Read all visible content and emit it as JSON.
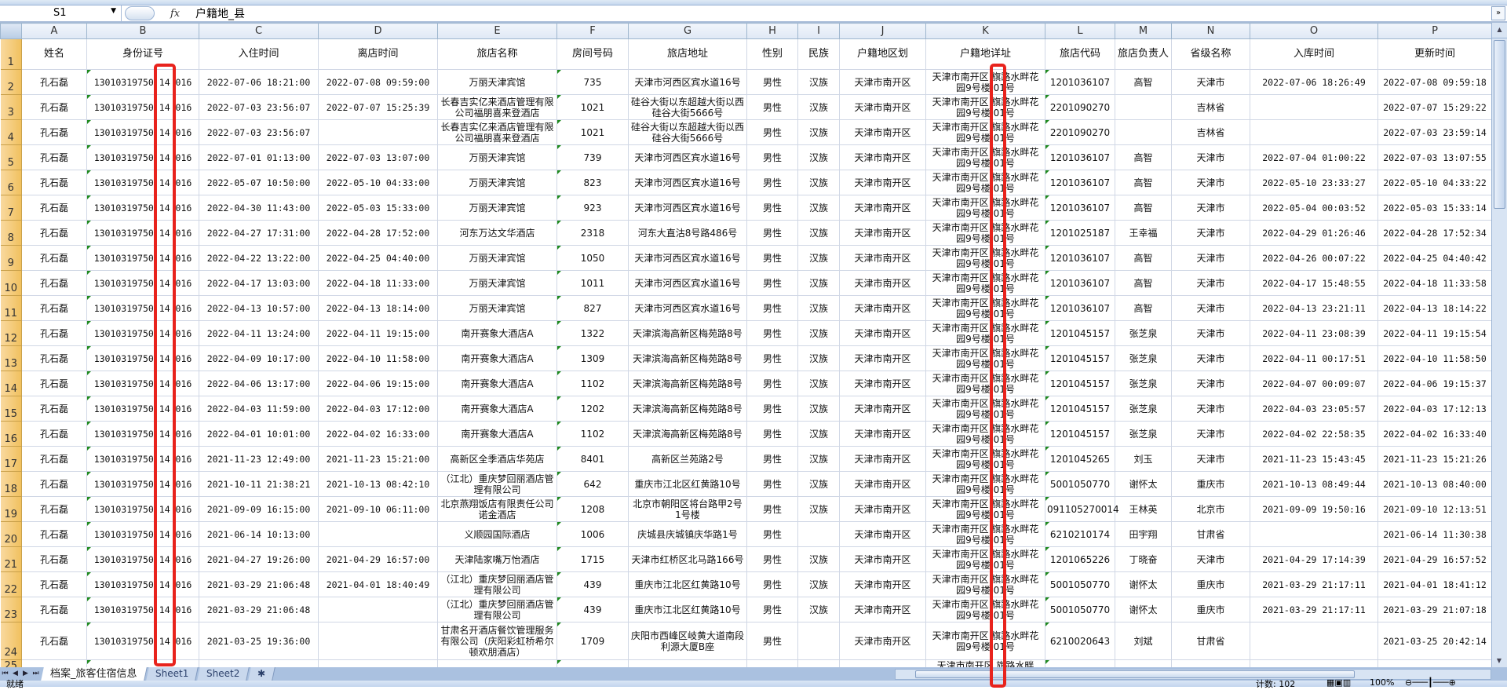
{
  "formula_bar": {
    "name_box": "S1",
    "fx_label": "fx",
    "content": "户籍地_县"
  },
  "columns": [
    "A",
    "B",
    "C",
    "D",
    "E",
    "F",
    "G",
    "H",
    "I",
    "J",
    "K",
    "L",
    "M",
    "N",
    "O",
    "P"
  ],
  "headers": [
    "姓名",
    "身份证号",
    "入住时间",
    "离店时间",
    "旅店名称",
    "房间号码",
    "旅店地址",
    "性别",
    "民族",
    "户籍地区划",
    "户籍地详址",
    "旅店代码",
    "旅店负责人",
    "省级名称",
    "入库时间",
    "更新时间"
  ],
  "rows": [
    [
      "孔石磊",
      "13010319750 14 016",
      "2022-07-06 18:21:00",
      "2022-07-08 09:59:00",
      "万丽天津宾馆",
      "735",
      "天津市河西区宾水道16号",
      "男性",
      "汉族",
      "天津市南开区",
      "天津市南开区 旗路水畔花园9号楼 01号",
      "1201036107",
      "高智",
      "天津市",
      "2022-07-06 18:26:49",
      "2022-07-08 09:59:18"
    ],
    [
      "孔石磊",
      "13010319750 14 016",
      "2022-07-03 23:56:07",
      "2022-07-07 15:25:39",
      "长春吉实亿来酒店管理有限公司福朋喜来登酒店",
      "1021",
      "硅谷大街以东超越大街以西硅谷大街5666号",
      "男性",
      "汉族",
      "天津市南开区",
      "天津市南开区 旗路水畔花园9号楼 01号",
      "2201090270",
      "",
      "吉林省",
      "",
      "2022-07-07 15:29:22"
    ],
    [
      "孔石磊",
      "13010319750 14 016",
      "2022-07-03 23:56:07",
      "",
      "长春吉实亿来酒店管理有限公司福朋喜来登酒店",
      "1021",
      "硅谷大街以东超越大街以西硅谷大街5666号",
      "男性",
      "汉族",
      "天津市南开区",
      "天津市南开区 旗路水畔花园9号楼 01号",
      "2201090270",
      "",
      "吉林省",
      "",
      "2022-07-03 23:59:14"
    ],
    [
      "孔石磊",
      "13010319750 14 016",
      "2022-07-01 01:13:00",
      "2022-07-03 13:07:00",
      "万丽天津宾馆",
      "739",
      "天津市河西区宾水道16号",
      "男性",
      "汉族",
      "天津市南开区",
      "天津市南开区 旗路水畔花园9号楼 01号",
      "1201036107",
      "高智",
      "天津市",
      "2022-07-04 01:00:22",
      "2022-07-03 13:07:55"
    ],
    [
      "孔石磊",
      "13010319750 14 016",
      "2022-05-07 10:50:00",
      "2022-05-10 04:33:00",
      "万丽天津宾馆",
      "823",
      "天津市河西区宾水道16号",
      "男性",
      "汉族",
      "天津市南开区",
      "天津市南开区 旗路水畔花园9号楼 01号",
      "1201036107",
      "高智",
      "天津市",
      "2022-05-10 23:33:27",
      "2022-05-10 04:33:22"
    ],
    [
      "孔石磊",
      "13010319750 14 016",
      "2022-04-30 11:43:00",
      "2022-05-03 15:33:00",
      "万丽天津宾馆",
      "923",
      "天津市河西区宾水道16号",
      "男性",
      "汉族",
      "天津市南开区",
      "天津市南开区 旗路水畔花园9号楼 01号",
      "1201036107",
      "高智",
      "天津市",
      "2022-05-04 00:03:52",
      "2022-05-03 15:33:14"
    ],
    [
      "孔石磊",
      "13010319750 14 016",
      "2022-04-27 17:31:00",
      "2022-04-28 17:52:00",
      "河东万达文华酒店",
      "2318",
      "河东大直沽8号路486号",
      "男性",
      "汉族",
      "天津市南开区",
      "天津市南开区 旗路水畔花园9号楼 01号",
      "1201025187",
      "王幸福",
      "天津市",
      "2022-04-29 01:26:46",
      "2022-04-28 17:52:34"
    ],
    [
      "孔石磊",
      "13010319750 14 016",
      "2022-04-22 13:22:00",
      "2022-04-25 04:40:00",
      "万丽天津宾馆",
      "1050",
      "天津市河西区宾水道16号",
      "男性",
      "汉族",
      "天津市南开区",
      "天津市南开区 旗路水畔花园9号楼 01号",
      "1201036107",
      "高智",
      "天津市",
      "2022-04-26 00:07:22",
      "2022-04-25 04:40:42"
    ],
    [
      "孔石磊",
      "13010319750 14 016",
      "2022-04-17 13:03:00",
      "2022-04-18 11:33:00",
      "万丽天津宾馆",
      "1011",
      "天津市河西区宾水道16号",
      "男性",
      "汉族",
      "天津市南开区",
      "天津市南开区 旗路水畔花园9号楼 01号",
      "1201036107",
      "高智",
      "天津市",
      "2022-04-17 15:48:55",
      "2022-04-18 11:33:58"
    ],
    [
      "孔石磊",
      "13010319750 14 016",
      "2022-04-13 10:57:00",
      "2022-04-13 18:14:00",
      "万丽天津宾馆",
      "827",
      "天津市河西区宾水道16号",
      "男性",
      "汉族",
      "天津市南开区",
      "天津市南开区 旗路水畔花园9号楼 01号",
      "1201036107",
      "高智",
      "天津市",
      "2022-04-13 23:21:11",
      "2022-04-13 18:14:22"
    ],
    [
      "孔石磊",
      "13010319750 14 016",
      "2022-04-11 13:24:00",
      "2022-04-11 19:15:00",
      "南开赛象大酒店A",
      "1322",
      "天津滨海高新区梅苑路8号",
      "男性",
      "汉族",
      "天津市南开区",
      "天津市南开区 旗路水畔花园9号楼 01号",
      "1201045157",
      "张芝泉",
      "天津市",
      "2022-04-11 23:08:39",
      "2022-04-11 19:15:54"
    ],
    [
      "孔石磊",
      "13010319750 14 016",
      "2022-04-09 10:17:00",
      "2022-04-10 11:58:00",
      "南开赛象大酒店A",
      "1309",
      "天津滨海高新区梅苑路8号",
      "男性",
      "汉族",
      "天津市南开区",
      "天津市南开区 旗路水畔花园9号楼 01号",
      "1201045157",
      "张芝泉",
      "天津市",
      "2022-04-11 00:17:51",
      "2022-04-10 11:58:50"
    ],
    [
      "孔石磊",
      "13010319750 14 016",
      "2022-04-06 13:17:00",
      "2022-04-06 19:15:00",
      "南开赛象大酒店A",
      "1102",
      "天津滨海高新区梅苑路8号",
      "男性",
      "汉族",
      "天津市南开区",
      "天津市南开区 旗路水畔花园9号楼 01号",
      "1201045157",
      "张芝泉",
      "天津市",
      "2022-04-07 00:09:07",
      "2022-04-06 19:15:37"
    ],
    [
      "孔石磊",
      "13010319750 14 016",
      "2022-04-03 11:59:00",
      "2022-04-03 17:12:00",
      "南开赛象大酒店A",
      "1202",
      "天津滨海高新区梅苑路8号",
      "男性",
      "汉族",
      "天津市南开区",
      "天津市南开区 旗路水畔花园9号楼 01号",
      "1201045157",
      "张芝泉",
      "天津市",
      "2022-04-03 23:05:57",
      "2022-04-03 17:12:13"
    ],
    [
      "孔石磊",
      "13010319750 14 016",
      "2022-04-01 10:01:00",
      "2022-04-02 16:33:00",
      "南开赛象大酒店A",
      "1102",
      "天津滨海高新区梅苑路8号",
      "男性",
      "汉族",
      "天津市南开区",
      "天津市南开区 旗路水畔花园9号楼 01号",
      "1201045157",
      "张芝泉",
      "天津市",
      "2022-04-02 22:58:35",
      "2022-04-02 16:33:40"
    ],
    [
      "孔石磊",
      "13010319750 14 016",
      "2021-11-23 12:49:00",
      "2021-11-23 15:21:00",
      "高新区全季酒店华苑店",
      "8401",
      "高新区兰苑路2号",
      "男性",
      "汉族",
      "天津市南开区",
      "天津市南开区 旗路水畔花园9号楼 01号",
      "1201045265",
      "刘玉",
      "天津市",
      "2021-11-23 15:43:45",
      "2021-11-23 15:21:26"
    ],
    [
      "孔石磊",
      "13010319750 14 016",
      "2021-10-11 21:38:21",
      "2021-10-13 08:42:10",
      "（江北）重庆梦回丽酒店管理有限公司",
      "642",
      "重庆市江北区红黄路10号",
      "男性",
      "汉族",
      "天津市南开区",
      "天津市南开区 旗路水畔花园9号楼 01号",
      "5001050770",
      "谢怀太",
      "重庆市",
      "2021-10-13 08:49:44",
      "2021-10-13 08:40:00"
    ],
    [
      "孔石磊",
      "13010319750 14 016",
      "2021-09-09 16:15:00",
      "2021-09-10 06:11:00",
      "北京燕翔饭店有限责任公司诺金酒店",
      "1208",
      "北京市朝阳区将台路甲2号1号楼",
      "男性",
      "汉族",
      "天津市南开区",
      "天津市南开区 旗路水畔花园9号楼 01号",
      "091105270014",
      "王林英",
      "北京市",
      "2021-09-09 19:50:16",
      "2021-09-10 12:13:51"
    ],
    [
      "孔石磊",
      "13010319750 14 016",
      "2021-06-14 10:13:00",
      "",
      "义顺园国际酒店",
      "1006",
      "庆城县庆城镇庆华路1号",
      "男性",
      "",
      "天津市南开区",
      "天津市南开区 旗路水畔花园9号楼 01号",
      "6210210174",
      "田宇翔",
      "甘肃省",
      "",
      "2021-06-14 11:30:38"
    ],
    [
      "孔石磊",
      "13010319750 14 016",
      "2021-04-27 19:26:00",
      "2021-04-29 16:57:00",
      "天津陆家嘴万怡酒店",
      "1715",
      "天津市红桥区北马路166号",
      "男性",
      "汉族",
      "天津市南开区",
      "天津市南开区 旗路水畔花园9号楼 01号",
      "1201065226",
      "丁晓奋",
      "天津市",
      "2021-04-29 17:14:39",
      "2021-04-29 16:57:52"
    ],
    [
      "孔石磊",
      "13010319750 14 016",
      "2021-03-29 21:06:48",
      "2021-04-01 18:40:49",
      "（江北）重庆梦回丽酒店管理有限公司",
      "439",
      "重庆市江北区红黄路10号",
      "男性",
      "汉族",
      "天津市南开区",
      "天津市南开区 旗路水畔花园9号楼 01号",
      "5001050770",
      "谢怀太",
      "重庆市",
      "2021-03-29 21:17:11",
      "2021-04-01 18:41:12"
    ],
    [
      "孔石磊",
      "13010319750 14 016",
      "2021-03-29 21:06:48",
      "",
      "（江北）重庆梦回丽酒店管理有限公司",
      "439",
      "重庆市江北区红黄路10号",
      "男性",
      "汉族",
      "天津市南开区",
      "天津市南开区 旗路水畔花园9号楼 01号",
      "5001050770",
      "谢怀太",
      "重庆市",
      "2021-03-29 21:17:11",
      "2021-03-29 21:07:18"
    ],
    [
      "孔石磊",
      "13010319750 14 016",
      "2021-03-25 19:36:00",
      "",
      "甘肃名开酒店餐饮管理服务有限公司（庆阳彩虹桥希尔顿欢朋酒店）",
      "1709",
      "庆阳市西峰区岐黄大道南段利源大厦B座",
      "男性",
      "",
      "天津市南开区",
      "天津市南开区 旗路水畔花园9号楼 01号",
      "6210020643",
      "刘斌",
      "甘肃省",
      "",
      "2021-03-25 20:42:14"
    ]
  ],
  "partial_row_k": "天津市南开区 旗路水畔",
  "sheet_tabs": [
    "档案_旅客住宿信息",
    "Sheet1",
    "Sheet2"
  ],
  "active_tab": "档案_旅客住宿信息",
  "status_bar": {
    "ready": "就绪",
    "count": "计数: 102",
    "zoom": "100%"
  },
  "colors": {
    "highlight": "#e8231d",
    "row_header_selected": "#f1c15f",
    "text_number_marker": "#1f8a1f"
  }
}
